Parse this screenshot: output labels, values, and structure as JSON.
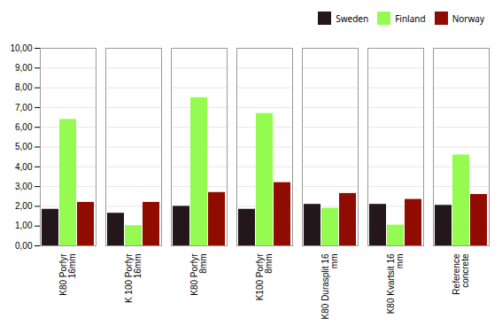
{
  "chart_data": {
    "type": "bar",
    "categories": [
      "K80 Porfyr\n16mm",
      "K 100 Porfyr\n16mm",
      "K80 Porfyr\n8mm",
      "K100 Porfyr\n8mm",
      "K80 Durasplit 16\nmm",
      "K80 Kvartsit 16\nmm",
      "Reference\nconcrete"
    ],
    "series": [
      {
        "name": "Sweden",
        "values": [
          1.85,
          1.65,
          2.0,
          1.85,
          2.1,
          2.1,
          2.05
        ]
      },
      {
        "name": "Finland",
        "values": [
          6.4,
          1.02,
          7.5,
          6.7,
          1.9,
          1.05,
          4.6
        ]
      },
      {
        "name": "Norway",
        "values": [
          2.2,
          2.2,
          2.7,
          3.2,
          2.65,
          2.35,
          2.6
        ]
      }
    ],
    "ylim": [
      0,
      10
    ],
    "yticks": [
      {
        "value": 0,
        "label": "0,00"
      },
      {
        "value": 1,
        "label": "1,00"
      },
      {
        "value": 2,
        "label": "2,00"
      },
      {
        "value": 3,
        "label": "3,00"
      },
      {
        "value": 4,
        "label": "4,00"
      },
      {
        "value": 5,
        "label": "5,00"
      },
      {
        "value": 6,
        "label": "6,00"
      },
      {
        "value": 7,
        "label": "7,00"
      },
      {
        "value": 8,
        "label": "8,00"
      },
      {
        "value": 9,
        "label": "9,00"
      },
      {
        "value": 10,
        "label": "10,00"
      }
    ],
    "grid": true,
    "legend": "upper right"
  }
}
